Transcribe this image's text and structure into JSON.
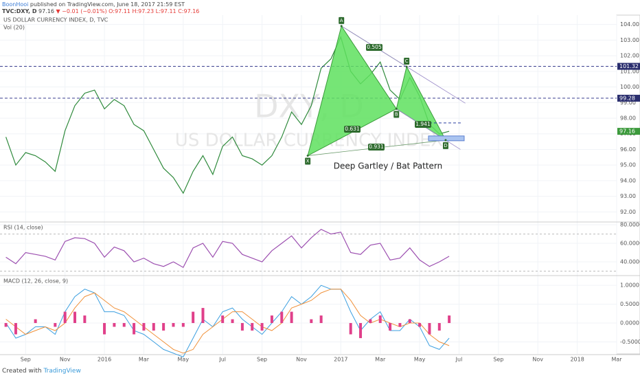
{
  "header": {
    "publisher": "BoonHooi",
    "published": "published on TradingView.com, June 18, 2017 21:59 EST",
    "ticker": "TVC:DXY, D",
    "last": "97.16",
    "change": "▼ −0.01 (−0.01%)",
    "ohlc": "O:97.11 H:97.23 L:97.11 C:97.16"
  },
  "footer": {
    "created": "Created with",
    "brand": "TradingView"
  },
  "chart_data": [
    {
      "type": "line",
      "title": "US DOLLAR CURRENCY INDEX, D, TVC",
      "subtitle": "Vol (20)",
      "watermark": [
        "DXY, D",
        "US DOLLAR CURRENCY INDEX"
      ],
      "annotation": "Deep Gartley / Bat Pattern",
      "x": [
        7.0,
        7.5,
        8.0,
        8.5,
        9.0,
        9.5,
        10.0,
        10.5,
        11.0,
        11.5,
        12.0,
        12.5,
        13.0,
        13.5,
        14.0,
        14.5,
        15.0,
        15.5,
        16.0,
        16.5,
        17.0,
        17.5,
        18.0,
        18.5,
        19.0,
        19.5,
        20.0,
        20.5,
        21.0,
        21.5,
        22.0,
        22.5,
        23.0,
        23.5,
        24.0,
        24.5,
        25.0,
        25.5,
        26.0,
        26.5,
        27.0,
        27.5,
        28.0,
        28.5,
        29.0,
        29.5
      ],
      "values": [
        96.8,
        95.0,
        95.8,
        95.6,
        95.2,
        94.6,
        97.2,
        98.8,
        99.6,
        99.8,
        98.6,
        99.2,
        98.8,
        97.6,
        97.2,
        96.0,
        94.8,
        94.2,
        93.2,
        94.6,
        95.6,
        94.4,
        96.2,
        96.8,
        95.6,
        95.4,
        95.0,
        95.6,
        96.8,
        98.4,
        97.6,
        98.8,
        101.2,
        101.8,
        103.2,
        101.0,
        100.2,
        100.8,
        101.6,
        99.8,
        99.2,
        100.6,
        99.4,
        97.6,
        97.0,
        97.16
      ],
      "color": "#2f8a3c",
      "xlim": [
        6.7,
        38
      ],
      "ylim": [
        91.4,
        104.6
      ],
      "yticks": [
        {
          "value": 92,
          "label": "92.00"
        },
        {
          "value": 93,
          "label": "93.00"
        },
        {
          "value": 94,
          "label": "94.00"
        },
        {
          "value": 95,
          "label": "95.00"
        },
        {
          "value": 96,
          "label": "96.00"
        },
        {
          "value": 97,
          "label": "97.00"
        },
        {
          "value": 98,
          "label": "98.00"
        },
        {
          "value": 99,
          "label": "99.00"
        },
        {
          "value": 100,
          "label": "100.00"
        },
        {
          "value": 101,
          "label": "101.00"
        },
        {
          "value": 102,
          "label": "102.00"
        },
        {
          "value": 103,
          "label": "103.00"
        },
        {
          "value": 104,
          "label": "104.00"
        }
      ],
      "hlines": [
        {
          "value": 101.32,
          "label": "101.32"
        },
        {
          "value": 99.28,
          "label": "99.28"
        }
      ],
      "last_price": {
        "value": 97.16,
        "label": "97.16"
      },
      "pattern": {
        "points": [
          {
            "label": "X",
            "x": 22.32,
            "y": 95.6
          },
          {
            "label": "A",
            "x": 24.03,
            "y": 103.9
          },
          {
            "label": "B",
            "x": 26.82,
            "y": 98.6
          },
          {
            "label": "C",
            "x": 27.34,
            "y": 101.3
          },
          {
            "label": "D",
            "x": 29.32,
            "y": 96.6
          }
        ],
        "ratios": [
          "0.505",
          "0.631",
          "1.941",
          "0.931"
        ],
        "color": "#5ee05e"
      }
    },
    {
      "type": "line",
      "title": "RSI (14, close)",
      "x": [
        7.0,
        7.5,
        8.0,
        8.5,
        9.0,
        9.5,
        10.0,
        10.5,
        11.0,
        11.5,
        12.0,
        12.5,
        13.0,
        13.5,
        14.0,
        14.5,
        15.0,
        15.5,
        16.0,
        16.5,
        17.0,
        17.5,
        18.0,
        18.5,
        19.0,
        19.5,
        20.0,
        20.5,
        21.0,
        21.5,
        22.0,
        22.5,
        23.0,
        23.5,
        24.0,
        24.5,
        25.0,
        25.5,
        26.0,
        26.5,
        27.0,
        27.5,
        28.0,
        28.5,
        29.0,
        29.5
      ],
      "values": [
        45,
        38,
        50,
        48,
        46,
        42,
        62,
        66,
        65,
        60,
        45,
        56,
        52,
        40,
        44,
        38,
        35,
        40,
        34,
        55,
        60,
        45,
        62,
        60,
        48,
        44,
        40,
        52,
        60,
        68,
        55,
        66,
        75,
        70,
        72,
        50,
        48,
        58,
        60,
        42,
        44,
        55,
        42,
        35,
        40,
        46
      ],
      "color": "#9c4fb0",
      "xlim": [
        6.7,
        38
      ],
      "ylim": [
        25.9,
        82.2
      ],
      "bands": [
        70,
        30
      ],
      "yticks": [
        {
          "value": 40,
          "label": "40.0000"
        },
        {
          "value": 60,
          "label": "60.0000"
        },
        {
          "value": 80,
          "label": "80.0000"
        }
      ]
    },
    {
      "type": "macd",
      "title": "MACD (12, 26, close, 9)",
      "x": [
        7.0,
        7.5,
        8.0,
        8.5,
        9.0,
        9.5,
        10.0,
        10.5,
        11.0,
        11.5,
        12.0,
        12.5,
        13.0,
        13.5,
        14.0,
        14.5,
        15.0,
        15.5,
        16.0,
        16.5,
        17.0,
        17.5,
        18.0,
        18.5,
        19.0,
        19.5,
        20.0,
        20.5,
        21.0,
        21.5,
        22.0,
        22.5,
        23.0,
        23.5,
        24.0,
        24.5,
        25.0,
        25.5,
        26.0,
        26.5,
        27.0,
        27.5,
        28.0,
        28.5,
        29.0,
        29.5
      ],
      "series": [
        {
          "color": "#3b9fe0",
          "values": [
            0.0,
            -0.4,
            -0.3,
            -0.1,
            -0.1,
            -0.3,
            0.3,
            0.7,
            0.9,
            0.8,
            0.3,
            0.3,
            0.2,
            -0.2,
            -0.3,
            -0.5,
            -0.7,
            -0.8,
            -0.9,
            -0.4,
            0.1,
            -0.1,
            0.3,
            0.4,
            0.1,
            -0.1,
            -0.3,
            0.0,
            0.3,
            0.7,
            0.5,
            0.7,
            1.0,
            0.9,
            0.9,
            0.3,
            -0.2,
            0.1,
            0.3,
            -0.2,
            -0.2,
            0.1,
            -0.1,
            -0.6,
            -0.7,
            -0.4
          ]
        },
        {
          "color": "#f0913a",
          "values": [
            0.1,
            -0.1,
            -0.3,
            -0.2,
            -0.1,
            -0.2,
            0.0,
            0.4,
            0.7,
            0.8,
            0.6,
            0.4,
            0.3,
            0.1,
            -0.1,
            -0.3,
            -0.5,
            -0.7,
            -0.8,
            -0.7,
            -0.3,
            -0.1,
            0.1,
            0.3,
            0.3,
            0.1,
            -0.1,
            -0.2,
            0.0,
            0.4,
            0.5,
            0.6,
            0.8,
            0.9,
            0.9,
            0.6,
            0.2,
            0.0,
            0.1,
            0.0,
            -0.1,
            0.0,
            0.0,
            -0.3,
            -0.5,
            -0.6
          ]
        },
        {
          "type": "histogram",
          "color": "#e0408a",
          "values": [
            -0.1,
            -0.3,
            0,
            0.1,
            0,
            -0.1,
            0.3,
            0.3,
            0.2,
            0,
            -0.3,
            -0.1,
            -0.1,
            -0.3,
            -0.2,
            -0.2,
            -0.2,
            -0.1,
            -0.1,
            0.3,
            0.4,
            0,
            0.2,
            0.1,
            -0.2,
            -0.2,
            -0.2,
            0.2,
            0.3,
            0.3,
            0,
            0.1,
            0.2,
            0,
            0,
            -0.3,
            -0.4,
            0.1,
            0.2,
            -0.2,
            -0.1,
            0.1,
            -0.1,
            -0.3,
            -0.2,
            0.2
          ]
        }
      ],
      "xlim": [
        6.7,
        38
      ],
      "ylim": [
        -0.82,
        1.24
      ],
      "yticks": [
        {
          "value": -0.5,
          "label": "-0.5000"
        },
        {
          "value": 0,
          "label": "0.0000"
        },
        {
          "value": 0.5,
          "label": "0.5000"
        },
        {
          "value": 1,
          "label": "1.0000"
        }
      ],
      "xticks": [
        {
          "value": 8,
          "label": "Sep"
        },
        {
          "value": 10,
          "label": "Nov"
        },
        {
          "value": 12,
          "label": "2016"
        },
        {
          "value": 14,
          "label": "Mar"
        },
        {
          "value": 16,
          "label": "May"
        },
        {
          "value": 18,
          "label": "Jul"
        },
        {
          "value": 20,
          "label": "Sep"
        },
        {
          "value": 22,
          "label": "Nov"
        },
        {
          "value": 24,
          "label": "2017"
        },
        {
          "value": 26,
          "label": "Mar"
        },
        {
          "value": 28,
          "label": "May"
        },
        {
          "value": 30,
          "label": "Jul"
        },
        {
          "value": 32,
          "label": "Sep"
        },
        {
          "value": 34,
          "label": "Nov"
        },
        {
          "value": 36,
          "label": "2018"
        },
        {
          "value": 38,
          "label": "Mar"
        }
      ]
    }
  ]
}
